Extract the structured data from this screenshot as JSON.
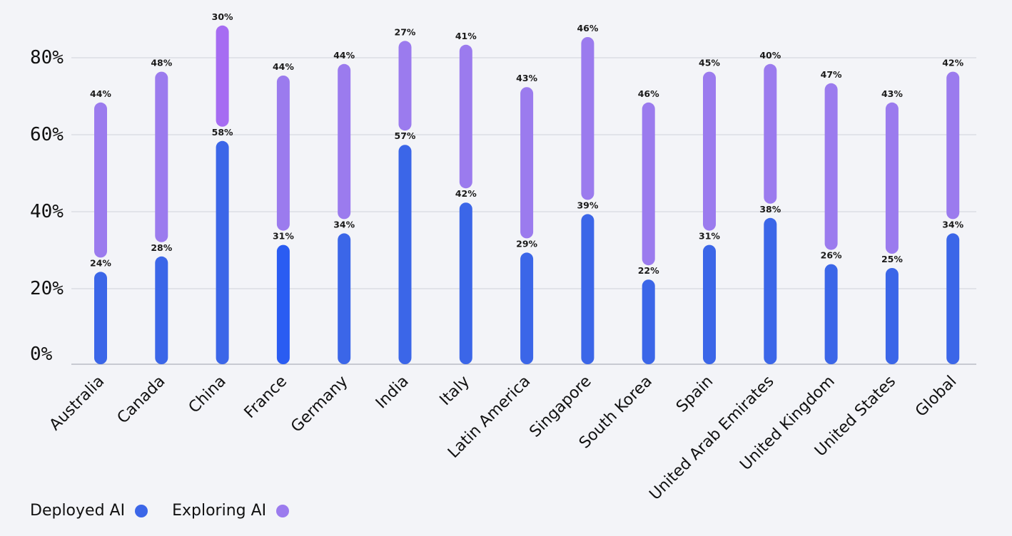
{
  "chart_data": {
    "type": "bar",
    "title": "",
    "xlabel": "",
    "ylabel": "",
    "ylim": [
      0,
      85
    ],
    "yticks": [
      "0%",
      "20%",
      "40%",
      "60%",
      "80%"
    ],
    "grid": true,
    "legend_placement": "bottom-left",
    "stacked": true,
    "categories": [
      "Australia",
      "Canada",
      "China",
      "France",
      "Germany",
      "India",
      "Italy",
      "Latin America",
      "Singapore",
      "South Korea",
      "Spain",
      "United Arab Emirates",
      "United Kingdom",
      "United States",
      "Global"
    ],
    "series": [
      {
        "name": "Deployed AI",
        "color": "#3b66e8",
        "values": [
          24,
          28,
          58,
          31,
          34,
          57,
          42,
          29,
          39,
          22,
          31,
          38,
          26,
          25,
          34
        ],
        "labels": [
          "24%",
          "28%",
          "58%",
          "31%",
          "34%",
          "57%",
          "42%",
          "29%",
          "39%",
          "22%",
          "31%",
          "38%",
          "26%",
          "25%",
          "34%"
        ]
      },
      {
        "name": "Exploring AI",
        "color": "#9b7bee",
        "values": [
          44,
          48,
          30,
          44,
          44,
          27,
          41,
          43,
          46,
          46,
          45,
          40,
          47,
          43,
          42
        ],
        "labels": [
          "44%",
          "48%",
          "30%",
          "44%",
          "44%",
          "27%",
          "41%",
          "43%",
          "46%",
          "46%",
          "45%",
          "40%",
          "47%",
          "43%",
          "42%"
        ]
      }
    ]
  },
  "legend": {
    "deployed_label": "Deployed AI",
    "exploring_label": "Exploring AI",
    "deployed_color": "#3b66e8",
    "exploring_color": "#9b7bee"
  }
}
